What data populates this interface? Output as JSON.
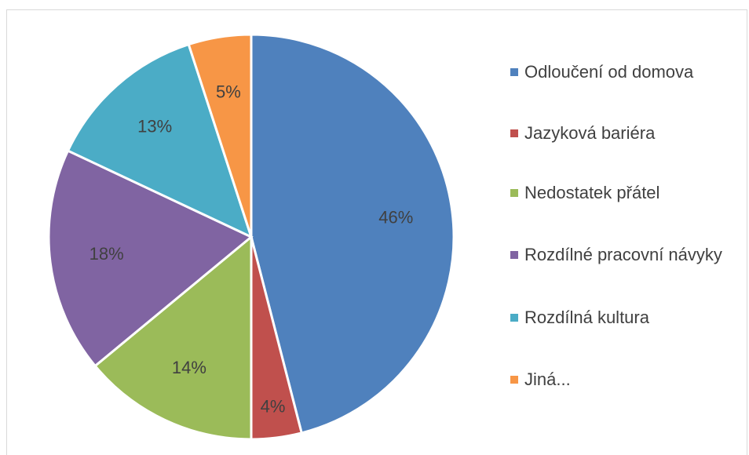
{
  "chart_data": {
    "type": "pie",
    "categories": [
      "Odloučení od domova",
      "Jazyková bariéra",
      "Nedostatek přátel",
      "Rozdílné pracovní návyky",
      "Rozdílná kultura",
      "Jiná..."
    ],
    "values": [
      46,
      4,
      14,
      18,
      13,
      5
    ],
    "value_labels": [
      "46%",
      "4%",
      "14%",
      "18%",
      "13%",
      "5%"
    ],
    "colors": [
      "#4f81bd",
      "#c0504d",
      "#9bbb59",
      "#8064a2",
      "#4bacc6",
      "#f79646"
    ],
    "legend": "right"
  }
}
